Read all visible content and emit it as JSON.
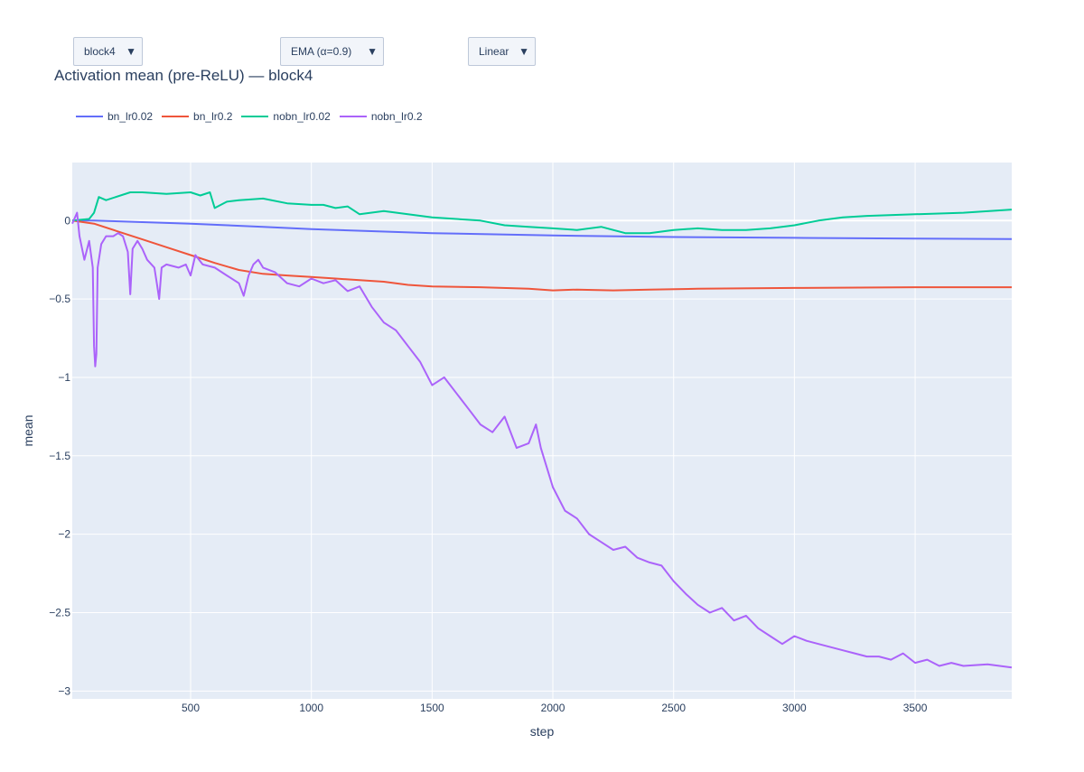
{
  "controls": {
    "block_select": {
      "value": "block4"
    },
    "smoothing_select": {
      "value": "EMA (α=0.9)"
    },
    "scale_select": {
      "value": "Linear"
    }
  },
  "chart_data": {
    "type": "line",
    "title": "Activation mean (pre-ReLU) — block4",
    "xlabel": "step",
    "ylabel": "mean",
    "xlim": [
      10,
      3900
    ],
    "ylim": [
      -3.05,
      0.37
    ],
    "x_ticks": [
      500,
      1000,
      1500,
      2000,
      2500,
      3000,
      3500
    ],
    "x_tick_labels": [
      "500",
      "1000",
      "1500",
      "2000",
      "2500",
      "3000",
      "3500"
    ],
    "y_ticks": [
      0,
      -0.5,
      -1,
      -1.5,
      -2,
      -2.5,
      -3
    ],
    "y_tick_labels": [
      "0",
      "−0.5",
      "−1",
      "−1.5",
      "−2",
      "−2.5",
      "−3"
    ],
    "grid": true,
    "legend_position": "top-left, horizontal",
    "series": [
      {
        "name": "bn_lr0.02",
        "color": "#636efa",
        "x": [
          10,
          100,
          300,
          500,
          800,
          1000,
          1500,
          2000,
          2500,
          3000,
          3500,
          3900
        ],
        "y": [
          0,
          0.0,
          -0.01,
          -0.02,
          -0.04,
          -0.055,
          -0.08,
          -0.095,
          -0.105,
          -0.11,
          -0.115,
          -0.118
        ]
      },
      {
        "name": "bn_lr0.2",
        "color": "#ef553b",
        "x": [
          10,
          100,
          200,
          300,
          400,
          500,
          600,
          700,
          800,
          900,
          1000,
          1100,
          1200,
          1300,
          1400,
          1500,
          1700,
          1900,
          2000,
          2100,
          2250,
          2400,
          2600,
          3000,
          3500,
          3900
        ],
        "y": [
          0,
          -0.02,
          -0.07,
          -0.12,
          -0.17,
          -0.22,
          -0.27,
          -0.315,
          -0.34,
          -0.35,
          -0.36,
          -0.37,
          -0.38,
          -0.39,
          -0.41,
          -0.42,
          -0.425,
          -0.435,
          -0.445,
          -0.44,
          -0.445,
          -0.44,
          -0.435,
          -0.43,
          -0.425,
          -0.425
        ]
      },
      {
        "name": "nobn_lr0.02",
        "color": "#00cc96",
        "x": [
          10,
          80,
          100,
          120,
          150,
          250,
          300,
          400,
          500,
          540,
          580,
          600,
          650,
          700,
          800,
          900,
          1000,
          1050,
          1100,
          1150,
          1200,
          1300,
          1400,
          1500,
          1600,
          1700,
          1800,
          1900,
          2000,
          2100,
          2200,
          2300,
          2400,
          2500,
          2600,
          2700,
          2800,
          2900,
          3000,
          3100,
          3200,
          3300,
          3500,
          3700,
          3900
        ],
        "y": [
          0,
          0.01,
          0.05,
          0.15,
          0.13,
          0.18,
          0.18,
          0.17,
          0.18,
          0.16,
          0.18,
          0.08,
          0.12,
          0.13,
          0.14,
          0.11,
          0.1,
          0.1,
          0.08,
          0.09,
          0.04,
          0.06,
          0.04,
          0.02,
          0.01,
          0.0,
          -0.03,
          -0.04,
          -0.05,
          -0.06,
          -0.04,
          -0.08,
          -0.08,
          -0.06,
          -0.05,
          -0.06,
          -0.06,
          -0.05,
          -0.03,
          0.0,
          0.02,
          0.03,
          0.04,
          0.05,
          0.07
        ]
      },
      {
        "name": "nobn_lr0.2",
        "color": "#ab63fa",
        "x": [
          10,
          30,
          40,
          60,
          80,
          95,
          100,
          105,
          110,
          115,
          130,
          150,
          180,
          200,
          220,
          240,
          250,
          260,
          280,
          300,
          320,
          350,
          360,
          370,
          380,
          400,
          450,
          480,
          500,
          520,
          550,
          600,
          650,
          700,
          720,
          740,
          760,
          780,
          800,
          850,
          900,
          950,
          1000,
          1050,
          1100,
          1150,
          1200,
          1250,
          1300,
          1350,
          1400,
          1450,
          1500,
          1550,
          1600,
          1650,
          1700,
          1750,
          1800,
          1850,
          1900,
          1930,
          1950,
          2000,
          2050,
          2100,
          2150,
          2200,
          2250,
          2300,
          2350,
          2400,
          2450,
          2500,
          2550,
          2600,
          2650,
          2700,
          2750,
          2800,
          2850,
          2900,
          2950,
          3000,
          3050,
          3100,
          3150,
          3200,
          3250,
          3300,
          3350,
          3400,
          3450,
          3500,
          3550,
          3600,
          3650,
          3700,
          3800,
          3900
        ],
        "y": [
          -0.02,
          0.05,
          -0.1,
          -0.25,
          -0.13,
          -0.3,
          -0.8,
          -0.93,
          -0.85,
          -0.3,
          -0.15,
          -0.1,
          -0.1,
          -0.08,
          -0.1,
          -0.2,
          -0.47,
          -0.18,
          -0.13,
          -0.18,
          -0.25,
          -0.3,
          -0.4,
          -0.5,
          -0.3,
          -0.28,
          -0.3,
          -0.28,
          -0.35,
          -0.22,
          -0.28,
          -0.3,
          -0.35,
          -0.4,
          -0.48,
          -0.35,
          -0.28,
          -0.25,
          -0.3,
          -0.33,
          -0.4,
          -0.42,
          -0.37,
          -0.4,
          -0.38,
          -0.45,
          -0.42,
          -0.55,
          -0.65,
          -0.7,
          -0.8,
          -0.9,
          -1.05,
          -1.0,
          -1.1,
          -1.2,
          -1.3,
          -1.35,
          -1.25,
          -1.45,
          -1.42,
          -1.3,
          -1.45,
          -1.7,
          -1.85,
          -1.9,
          -2.0,
          -2.05,
          -2.1,
          -2.08,
          -2.15,
          -2.18,
          -2.2,
          -2.3,
          -2.38,
          -2.45,
          -2.5,
          -2.47,
          -2.55,
          -2.52,
          -2.6,
          -2.65,
          -2.7,
          -2.65,
          -2.68,
          -2.7,
          -2.72,
          -2.74,
          -2.76,
          -2.78,
          -2.78,
          -2.8,
          -2.76,
          -2.82,
          -2.8,
          -2.84,
          -2.82,
          -2.84,
          -2.83,
          -2.85
        ]
      }
    ]
  }
}
